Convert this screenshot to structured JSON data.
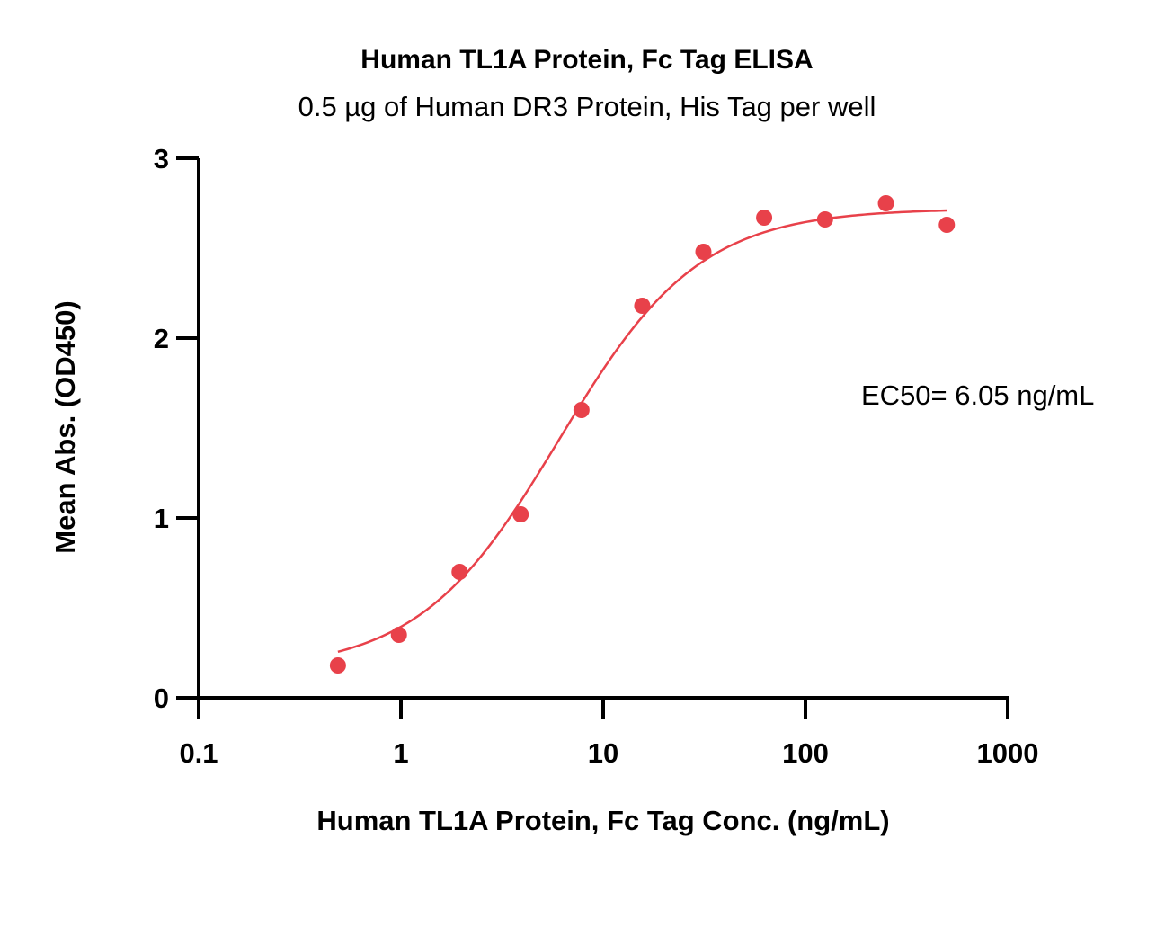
{
  "chart_data": {
    "type": "scatter",
    "title": "Human TL1A Protein, Fc Tag ELISA",
    "subtitle": "0.5 µg of Human DR3 Protein, His Tag per well",
    "xlabel": "Human TL1A Protein, Fc Tag Conc. (ng/mL)",
    "ylabel": "Mean Abs. (OD450)",
    "x_scale": "log",
    "xlim": [
      0.1,
      1000
    ],
    "ylim": [
      0,
      3
    ],
    "x_ticks": [
      "0.1",
      "1",
      "10",
      "100",
      "1000"
    ],
    "y_ticks": [
      "0",
      "1",
      "2",
      "3"
    ],
    "grid": false,
    "annotation": "EC50= 6.05 ng/mL",
    "color": "#E8414A",
    "series": [
      {
        "x": [
          0.488,
          0.977,
          1.95,
          3.91,
          7.81,
          15.6,
          31.3,
          62.5,
          125,
          250,
          500
        ],
        "y": [
          0.18,
          0.35,
          0.7,
          1.02,
          1.6,
          2.18,
          2.48,
          2.67,
          2.66,
          2.75,
          2.63
        ]
      }
    ],
    "fit_curve": {
      "model": "4PL",
      "bottom": 0.15,
      "top": 2.72,
      "ec50": 6.05,
      "hill": 1.25
    }
  }
}
